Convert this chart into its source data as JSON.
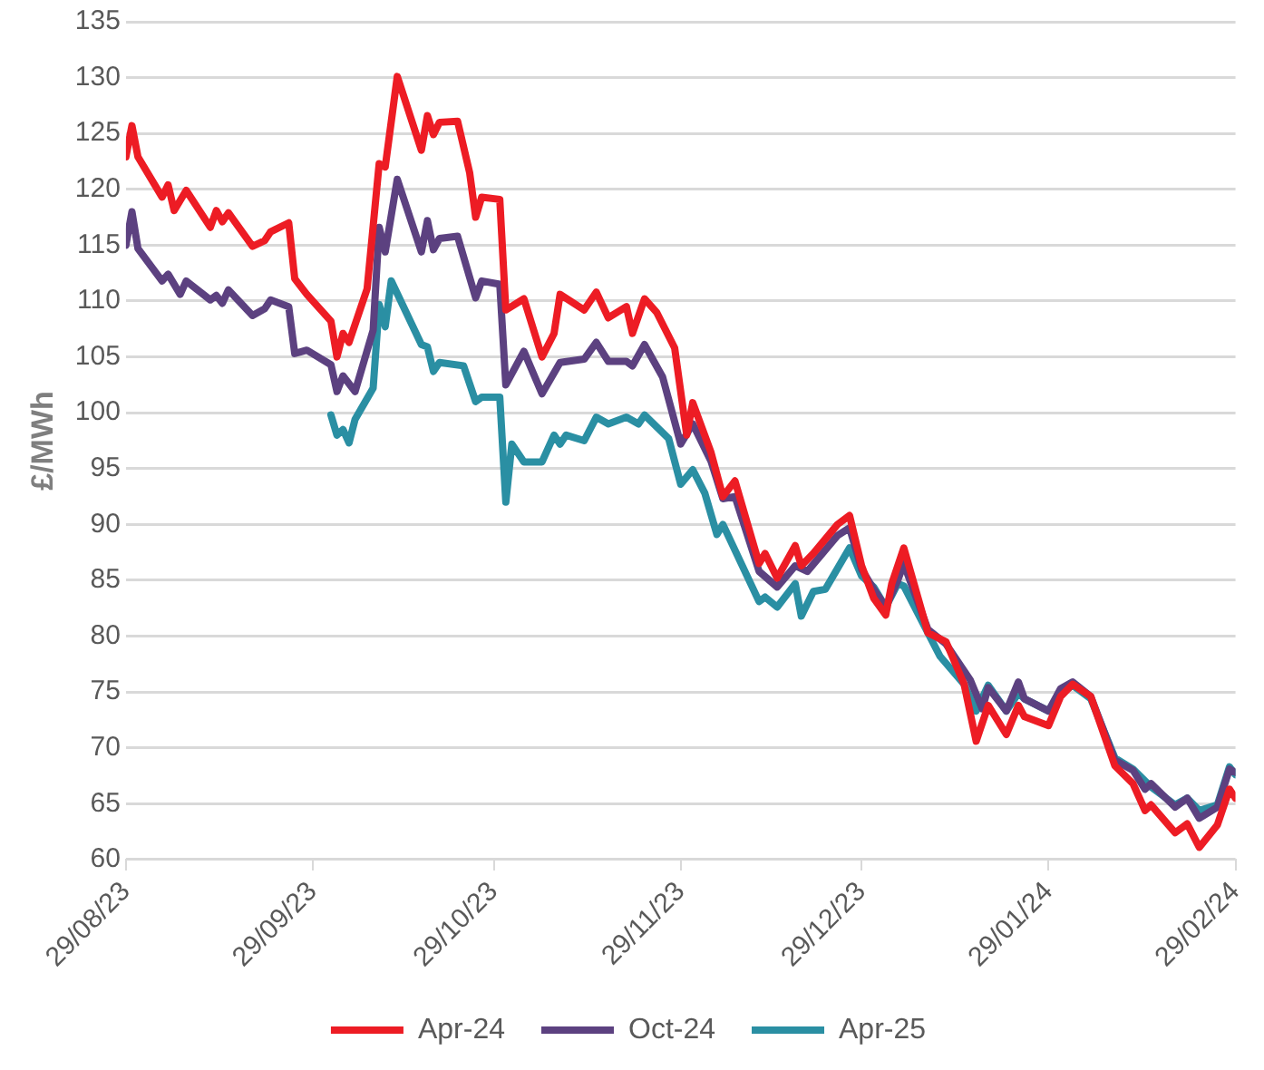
{
  "chart_data": {
    "type": "line",
    "ylabel": "£/MWh",
    "xlim": [
      "2023-08-29",
      "2024-02-29"
    ],
    "xticks": [
      {
        "value": "2023-08-29",
        "label": "29/08/23"
      },
      {
        "value": "2023-09-29",
        "label": "29/09/23"
      },
      {
        "value": "2023-10-29",
        "label": "29/10/23"
      },
      {
        "value": "2023-11-29",
        "label": "29/11/23"
      },
      {
        "value": "2023-12-29",
        "label": "29/12/23"
      },
      {
        "value": "2024-01-29",
        "label": "29/01/24"
      },
      {
        "value": "2024-02-29",
        "label": "29/02/24"
      }
    ],
    "ylim": [
      60,
      135
    ],
    "yticks": [
      60,
      65,
      70,
      75,
      80,
      85,
      90,
      95,
      100,
      105,
      110,
      115,
      120,
      125,
      130,
      135
    ],
    "grid": "y",
    "legend": "bottom",
    "marker": "none",
    "line_style": "solid",
    "series": [
      {
        "name": "Apr-24",
        "color": "#ed1c24",
        "x": [
          "2023-08-29",
          "2023-08-30",
          "2023-08-31",
          "2023-09-04",
          "2023-09-05",
          "2023-09-06",
          "2023-09-08",
          "2023-09-12",
          "2023-09-13",
          "2023-09-14",
          "2023-09-15",
          "2023-09-19",
          "2023-09-21",
          "2023-09-22",
          "2023-09-25",
          "2023-09-26",
          "2023-09-28",
          "2023-10-02",
          "2023-10-03",
          "2023-10-04",
          "2023-10-05",
          "2023-10-08",
          "2023-10-10",
          "2023-10-11",
          "2023-10-13",
          "2023-10-17",
          "2023-10-18",
          "2023-10-19",
          "2023-10-20",
          "2023-10-23",
          "2023-10-25",
          "2023-10-26",
          "2023-10-27",
          "2023-10-30",
          "2023-10-31",
          "2023-11-03",
          "2023-11-06",
          "2023-11-08",
          "2023-11-09",
          "2023-11-13",
          "2023-11-15",
          "2023-11-17",
          "2023-11-20",
          "2023-11-21",
          "2023-11-23",
          "2023-11-25",
          "2023-11-28",
          "2023-11-30",
          "2023-12-01",
          "2023-12-04",
          "2023-12-06",
          "2023-12-08",
          "2023-12-12",
          "2023-12-13",
          "2023-12-15",
          "2023-12-18",
          "2023-12-19",
          "2023-12-21",
          "2023-12-25",
          "2023-12-27",
          "2023-12-29",
          "2023-12-31",
          "2024-01-02",
          "2024-01-03",
          "2024-01-05",
          "2024-01-09",
          "2024-01-12",
          "2024-01-15",
          "2024-01-17",
          "2024-01-19",
          "2024-01-22",
          "2024-01-24",
          "2024-01-25",
          "2024-01-29",
          "2024-01-31",
          "2024-02-02",
          "2024-02-05",
          "2024-02-09",
          "2024-02-12",
          "2024-02-14",
          "2024-02-15",
          "2024-02-19",
          "2024-02-21",
          "2024-02-23",
          "2024-02-26",
          "2024-02-28",
          "2024-02-29"
        ],
        "values": [
          122.9,
          125.7,
          122.9,
          119.3,
          120.4,
          118.1,
          119.9,
          116.6,
          118.1,
          117.1,
          117.9,
          114.9,
          115.4,
          116.2,
          117.0,
          112.0,
          110.6,
          108.2,
          105.0,
          107.1,
          106.3,
          111.1,
          122.3,
          122.0,
          130.1,
          123.5,
          126.6,
          124.9,
          126.0,
          126.1,
          121.5,
          117.5,
          119.3,
          119.1,
          109.2,
          110.2,
          105.0,
          107.1,
          110.6,
          109.2,
          110.8,
          108.5,
          109.5,
          107.1,
          110.2,
          109.0,
          105.8,
          98.0,
          100.9,
          96.5,
          92.5,
          93.9,
          86.5,
          87.4,
          85.2,
          88.1,
          86.3,
          87.4,
          90.0,
          90.8,
          86.3,
          83.4,
          81.9,
          84.7,
          87.9,
          80.3,
          79.5,
          75.7,
          70.6,
          73.8,
          71.2,
          73.8,
          72.8,
          72.0,
          74.6,
          75.7,
          74.6,
          68.4,
          66.8,
          64.4,
          64.9,
          62.4,
          63.2,
          61.1,
          63.1,
          66.3,
          65.5
        ]
      },
      {
        "name": "Oct-24",
        "color": "#5c4180",
        "x": [
          "2023-08-29",
          "2023-08-30",
          "2023-08-31",
          "2023-09-04",
          "2023-09-05",
          "2023-09-07",
          "2023-09-08",
          "2023-09-12",
          "2023-09-13",
          "2023-09-14",
          "2023-09-15",
          "2023-09-19",
          "2023-09-21",
          "2023-09-22",
          "2023-09-25",
          "2023-09-26",
          "2023-09-28",
          "2023-10-02",
          "2023-10-03",
          "2023-10-04",
          "2023-10-06",
          "2023-10-09",
          "2023-10-10",
          "2023-10-11",
          "2023-10-13",
          "2023-10-17",
          "2023-10-18",
          "2023-10-19",
          "2023-10-20",
          "2023-10-23",
          "2023-10-26",
          "2023-10-27",
          "2023-10-30",
          "2023-10-31",
          "2023-11-03",
          "2023-11-06",
          "2023-11-09",
          "2023-11-13",
          "2023-11-15",
          "2023-11-17",
          "2023-11-20",
          "2023-11-21",
          "2023-11-23",
          "2023-11-26",
          "2023-11-29",
          "2023-12-01",
          "2023-12-04",
          "2023-12-06",
          "2023-12-08",
          "2023-12-12",
          "2023-12-15",
          "2023-12-18",
          "2023-12-20",
          "2023-12-25",
          "2023-12-27",
          "2023-12-29",
          "2023-12-31",
          "2024-01-02",
          "2024-01-04",
          "2024-01-05",
          "2024-01-09",
          "2024-01-12",
          "2024-01-16",
          "2024-01-18",
          "2024-01-19",
          "2024-01-22",
          "2024-01-24",
          "2024-01-25",
          "2024-01-29",
          "2024-01-31",
          "2024-02-02",
          "2024-02-05",
          "2024-02-09",
          "2024-02-12",
          "2024-02-14",
          "2024-02-15",
          "2024-02-19",
          "2024-02-21",
          "2024-02-23",
          "2024-02-26",
          "2024-02-28",
          "2024-02-29"
        ],
        "values": [
          115.0,
          118.0,
          114.7,
          111.8,
          112.4,
          110.6,
          111.8,
          110.1,
          110.5,
          109.8,
          111.0,
          108.7,
          109.3,
          110.1,
          109.5,
          105.3,
          105.6,
          104.3,
          101.9,
          103.3,
          101.9,
          107.4,
          116.6,
          114.4,
          120.9,
          114.4,
          117.2,
          114.6,
          115.6,
          115.8,
          110.3,
          111.8,
          111.5,
          102.5,
          105.5,
          101.7,
          104.5,
          104.8,
          106.3,
          104.6,
          104.6,
          104.2,
          106.1,
          103.2,
          97.2,
          99.0,
          95.7,
          92.3,
          92.5,
          85.8,
          84.4,
          86.3,
          85.8,
          89.0,
          89.7,
          86.0,
          84.2,
          82.6,
          85.0,
          86.5,
          80.6,
          79.3,
          76.1,
          73.5,
          75.4,
          73.3,
          75.9,
          74.4,
          73.3,
          75.3,
          75.9,
          74.6,
          68.9,
          68.0,
          66.3,
          66.8,
          64.7,
          65.5,
          63.7,
          64.7,
          68.1,
          67.8
        ]
      },
      {
        "name": "Apr-25",
        "color": "#2a8fa3",
        "x": [
          "2023-10-02",
          "2023-10-03",
          "2023-10-04",
          "2023-10-05",
          "2023-10-06",
          "2023-10-09",
          "2023-10-10",
          "2023-10-11",
          "2023-10-12",
          "2023-10-17",
          "2023-10-18",
          "2023-10-19",
          "2023-10-20",
          "2023-10-24",
          "2023-10-26",
          "2023-10-27",
          "2023-10-30",
          "2023-10-31",
          "2023-11-01",
          "2023-11-03",
          "2023-11-06",
          "2023-11-08",
          "2023-11-09",
          "2023-11-10",
          "2023-11-13",
          "2023-11-15",
          "2023-11-17",
          "2023-11-20",
          "2023-11-22",
          "2023-11-23",
          "2023-11-27",
          "2023-11-29",
          "2023-12-01",
          "2023-12-03",
          "2023-12-05",
          "2023-12-06",
          "2023-12-12",
          "2023-12-13",
          "2023-12-15",
          "2023-12-18",
          "2023-12-19",
          "2023-12-21",
          "2023-12-23",
          "2023-12-27",
          "2023-12-29",
          "2023-12-31",
          "2024-01-02",
          "2024-01-04",
          "2024-01-05",
          "2024-01-09",
          "2024-01-11",
          "2024-01-15",
          "2024-01-17",
          "2024-01-19",
          "2024-01-22",
          "2024-01-24",
          "2024-01-25",
          "2024-01-29",
          "2024-01-31",
          "2024-02-02",
          "2024-02-05",
          "2024-02-09",
          "2024-02-12",
          "2024-02-15",
          "2024-02-19",
          "2024-02-21",
          "2024-02-23",
          "2024-02-26",
          "2024-02-28",
          "2024-02-29"
        ],
        "values": [
          99.8,
          98.0,
          98.5,
          97.3,
          99.4,
          102.2,
          109.7,
          107.7,
          111.8,
          106.1,
          105.9,
          103.7,
          104.5,
          104.2,
          101.0,
          101.4,
          101.4,
          92.0,
          97.2,
          95.6,
          95.6,
          98.0,
          97.2,
          98.0,
          97.5,
          99.6,
          99.0,
          99.6,
          99.0,
          99.8,
          97.7,
          93.6,
          94.9,
          92.8,
          89.1,
          90.0,
          83.1,
          83.5,
          82.6,
          84.7,
          81.8,
          84.0,
          84.2,
          87.9,
          85.4,
          84.4,
          82.6,
          84.7,
          84.5,
          80.3,
          78.2,
          75.7,
          73.3,
          75.6,
          73.3,
          74.9,
          74.4,
          73.3,
          74.9,
          75.6,
          74.4,
          69.1,
          68.1,
          66.5,
          64.9,
          65.5,
          64.4,
          64.9,
          68.3,
          67.6
        ]
      }
    ]
  }
}
